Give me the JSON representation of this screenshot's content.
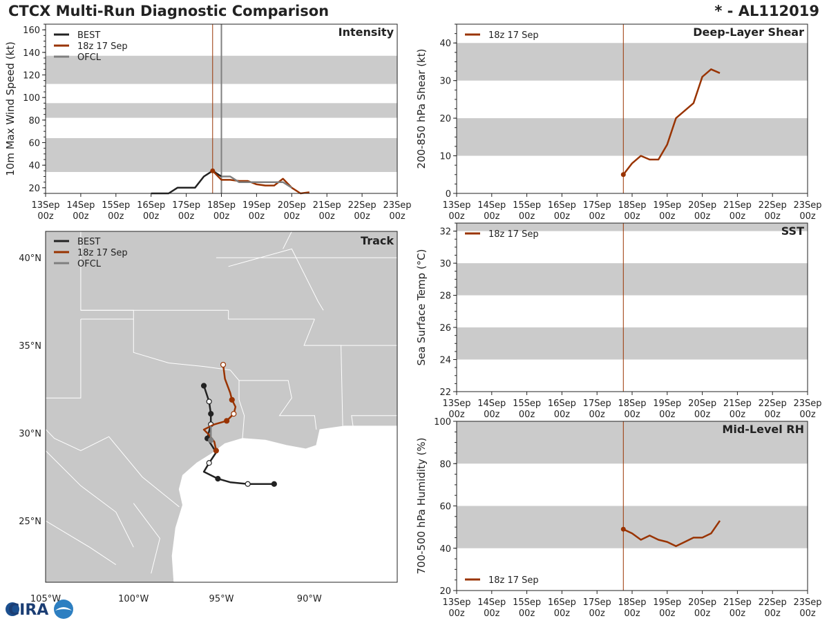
{
  "header": {
    "title": "CTCX Multi-Run Diagnostic Comparison",
    "storm": "* - AL112019"
  },
  "logo_text": "CIRA",
  "colors": {
    "best": "#222222",
    "run": "#993300",
    "ofcl": "#7f7f7f",
    "band": "#cbcbcb",
    "land": "#c8c8c8"
  },
  "time_axis": {
    "ticks": [
      "13Sep\n00z",
      "14Sep\n00z",
      "15Sep\n00z",
      "16Sep\n00z",
      "17Sep\n00z",
      "18Sep\n00z",
      "19Sep\n00z",
      "20Sep\n00z",
      "21Sep\n00z",
      "22Sep\n00z",
      "23Sep\n00z"
    ],
    "range_days": [
      0,
      10
    ],
    "init_time_days": 4.75
  },
  "chart_data": [
    {
      "id": "intensity",
      "type": "line",
      "title": "Intensity",
      "ylabel": "10m Max Wind Speed (kt)",
      "ylim": [
        15,
        165
      ],
      "yticks": [
        20,
        40,
        60,
        80,
        100,
        120,
        140,
        160
      ],
      "bands": [
        [
          34,
          64
        ],
        [
          82,
          95
        ],
        [
          112,
          137
        ]
      ],
      "legend": [
        "BEST",
        "18z 17 Sep",
        "OFCL"
      ],
      "vlines": [
        4.75,
        5.0
      ],
      "series": [
        {
          "name": "BEST",
          "x": [
            3.0,
            3.5,
            3.75,
            4.0,
            4.25,
            4.5,
            4.75,
            5.0
          ],
          "y": [
            15,
            15,
            20,
            20,
            20,
            30,
            35,
            30
          ]
        },
        {
          "name": "18z 17 Sep",
          "x": [
            4.75,
            5.0,
            5.25,
            5.5,
            5.75,
            6.0,
            6.25,
            6.5,
            6.75,
            7.0,
            7.25,
            7.5
          ],
          "y": [
            35,
            27,
            27,
            26,
            26,
            23,
            22,
            22,
            28,
            20,
            15,
            16
          ]
        },
        {
          "name": "OFCL",
          "x": [
            5.0,
            5.25,
            5.5,
            5.75,
            6.0,
            6.25,
            6.5,
            6.75,
            7.0
          ],
          "y": [
            30,
            30,
            25,
            25,
            25,
            25,
            25,
            25,
            20
          ]
        }
      ]
    },
    {
      "id": "shear",
      "type": "line",
      "title": "Deep-Layer Shear",
      "ylabel": "200-850 hPa Shear (kt)",
      "ylim": [
        0,
        45
      ],
      "yticks": [
        0,
        10,
        20,
        30,
        40
      ],
      "bands": [
        [
          10,
          20
        ],
        [
          30,
          40
        ]
      ],
      "legend": [
        "18z 17 Sep"
      ],
      "vlines": [
        4.75
      ],
      "series": [
        {
          "name": "18z 17 Sep",
          "x": [
            4.75,
            5.0,
            5.25,
            5.5,
            5.75,
            6.0,
            6.25,
            6.5,
            6.75,
            7.0,
            7.25,
            7.5
          ],
          "y": [
            5,
            8,
            10,
            9,
            9,
            13,
            20,
            22,
            24,
            31,
            33,
            32
          ]
        }
      ]
    },
    {
      "id": "sst",
      "type": "line",
      "title": "SST",
      "ylabel": "Sea Surface Temp (°C)",
      "ylim": [
        22,
        32.5
      ],
      "yticks": [
        22,
        24,
        26,
        28,
        30,
        32
      ],
      "bands": [
        [
          24,
          26
        ],
        [
          28,
          30
        ],
        [
          32,
          32.5
        ]
      ],
      "legend": [
        "18z 17 Sep"
      ],
      "vlines": [
        4.75
      ],
      "series": []
    },
    {
      "id": "rh",
      "type": "line",
      "title": "Mid-Level RH",
      "ylabel": "700-500 hPa Humidity (%)",
      "ylim": [
        20,
        100
      ],
      "yticks": [
        20,
        40,
        60,
        80,
        100
      ],
      "bands": [
        [
          40,
          60
        ],
        [
          80,
          100
        ]
      ],
      "legend": [
        "18z 17 Sep"
      ],
      "vlines": [
        4.75
      ],
      "series": [
        {
          "name": "18z 17 Sep",
          "x": [
            4.75,
            5.0,
            5.25,
            5.5,
            5.75,
            6.0,
            6.25,
            6.5,
            6.75,
            7.0,
            7.25,
            7.5
          ],
          "y": [
            49,
            47,
            44,
            46,
            44,
            43,
            41,
            43,
            45,
            45,
            47,
            53
          ]
        }
      ]
    },
    {
      "id": "track",
      "type": "scatter",
      "title": "Track",
      "lon_range": [
        -105,
        -85
      ],
      "lat_range": [
        21.5,
        41.5
      ],
      "xticks": [
        "105°W",
        "100°W",
        "95°W",
        "90°W"
      ],
      "xtick_lons": [
        -105,
        -100,
        -95,
        -90
      ],
      "yticks": [
        "25°N",
        "30°N",
        "35°N",
        "40°N"
      ],
      "ytick_lats": [
        25,
        30,
        35,
        40
      ],
      "legend": [
        "BEST",
        "18z 17 Sep",
        "OFCL"
      ],
      "series": [
        {
          "name": "BEST",
          "lon": [
            -92.0,
            -93.5,
            -94.5,
            -95.2,
            -96.0,
            -95.7,
            -95.3,
            -95.8,
            -95.6,
            -95.6,
            -95.7,
            -96.0
          ],
          "lat": [
            27.1,
            27.1,
            27.2,
            27.4,
            27.8,
            28.3,
            28.9,
            29.7,
            30.5,
            31.1,
            31.8,
            32.7
          ],
          "markers": [
            1,
            1,
            0,
            1,
            0,
            1,
            0,
            1,
            1,
            1,
            1,
            1
          ],
          "filled": [
            1,
            0,
            0,
            1,
            0,
            0,
            0,
            1,
            0,
            1,
            0,
            1
          ]
        },
        {
          "name": "18z 17 Sep",
          "lon": [
            -95.3,
            -95.4,
            -95.7,
            -96.0,
            -95.4,
            -94.7,
            -94.3,
            -94.2,
            -94.4,
            -94.5,
            -94.8,
            -94.9
          ],
          "lat": [
            29.0,
            29.5,
            29.9,
            30.2,
            30.5,
            30.7,
            31.1,
            31.5,
            31.9,
            32.3,
            33.1,
            33.9
          ],
          "markers": [
            1,
            0,
            0,
            0,
            0,
            1,
            1,
            0,
            1,
            0,
            0,
            1
          ],
          "filled": [
            1,
            0,
            0,
            0,
            0,
            1,
            0,
            0,
            1,
            0,
            0,
            0
          ]
        },
        {
          "name": "OFCL",
          "lon": [
            -95.6,
            -95.6,
            -95.6
          ],
          "lat": [
            29.6,
            30.0,
            30.4
          ],
          "markers": [
            1,
            0,
            0
          ],
          "filled": [
            1,
            0,
            0
          ]
        }
      ]
    }
  ]
}
